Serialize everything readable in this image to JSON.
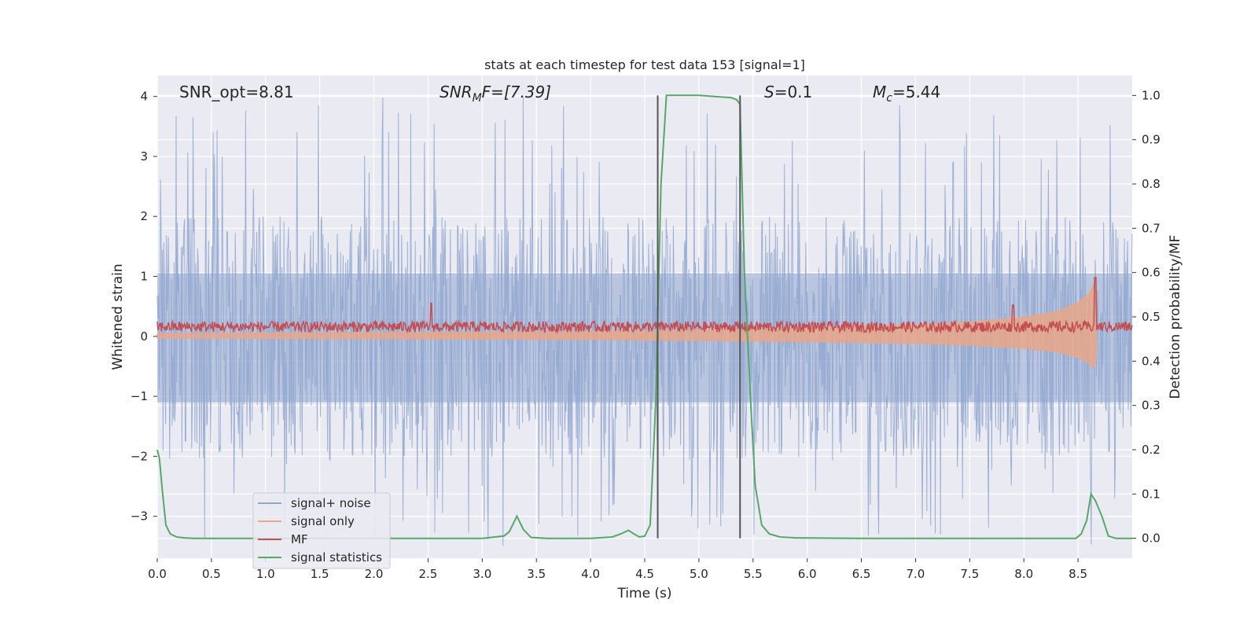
{
  "chart_data": {
    "type": "line",
    "title": "stats at each timestep for test data 153 [signal=1]",
    "xlabel": "Time (s)",
    "ylabel_left": "Whitened strain",
    "ylabel_right": "Detection probability/MF",
    "xlim": [
      0,
      9.0
    ],
    "ylim_left": [
      -3.7,
      4.35
    ],
    "ylim_right": [
      -0.045,
      1.045
    ],
    "x_ticks": [
      "0.0",
      "0.5",
      "1.0",
      "1.5",
      "2.0",
      "2.5",
      "3.0",
      "3.5",
      "4.0",
      "4.5",
      "5.0",
      "5.5",
      "6.0",
      "6.5",
      "7.0",
      "7.5",
      "8.0",
      "8.5"
    ],
    "y_ticks_left": [
      "4",
      "3",
      "2",
      "1",
      "0",
      "−1",
      "−2",
      "−3"
    ],
    "y_ticks_right": [
      "1.0",
      "0.9",
      "0.8",
      "0.7",
      "0.6",
      "0.5",
      "0.4",
      "0.3",
      "0.2",
      "0.1",
      "0.0"
    ],
    "grid": true,
    "legend_position": "lower-left",
    "legend": [
      {
        "label": "signal+ noise",
        "color": "#8fa6cf"
      },
      {
        "label": "signal only",
        "color": "#e8a68a"
      },
      {
        "label": "MF",
        "color": "#c44e52"
      },
      {
        "label": "signal statistics",
        "color": "#55a868"
      }
    ],
    "annotations": {
      "snr_opt": "SNR_opt=8.81",
      "snr_mf_main": "SNR",
      "snr_mf_sub": "M",
      "snr_mf_rest": "F=[7.39]",
      "s_main": "S",
      "s_rest": "=0.1",
      "mc_main": "M",
      "mc_sub": "c",
      "mc_rest": "=5.44"
    },
    "vertical_lines_x": [
      4.62,
      5.38
    ],
    "series": [
      {
        "name": "signal statistics",
        "axis": "right",
        "color": "#55a868",
        "x": [
          0.0,
          0.02,
          0.05,
          0.08,
          0.12,
          0.18,
          0.25,
          0.35,
          0.5,
          1.0,
          2.0,
          3.0,
          3.2,
          3.25,
          3.32,
          3.38,
          3.45,
          3.6,
          4.0,
          4.2,
          4.28,
          4.35,
          4.4,
          4.45,
          4.5,
          4.55,
          4.6,
          4.65,
          4.7,
          5.0,
          5.3,
          5.35,
          5.38,
          5.42,
          5.48,
          5.52,
          5.58,
          5.65,
          5.75,
          5.9,
          6.5,
          7.0,
          8.0,
          8.48,
          8.53,
          8.58,
          8.62,
          8.66,
          8.72,
          8.78,
          8.85,
          9.0
        ],
        "y": [
          0.2,
          0.18,
          0.1,
          0.03,
          0.01,
          0.003,
          0.001,
          0.0,
          0.0,
          0.0,
          0.0,
          0.0,
          0.005,
          0.015,
          0.05,
          0.02,
          0.002,
          0.0,
          0.0,
          0.003,
          0.01,
          0.018,
          0.01,
          0.003,
          0.005,
          0.03,
          0.3,
          0.8,
          1.0,
          1.0,
          0.995,
          0.99,
          0.98,
          0.6,
          0.3,
          0.12,
          0.03,
          0.01,
          0.003,
          0.001,
          0.0,
          0.0,
          0.0,
          0.0,
          0.01,
          0.04,
          0.1,
          0.085,
          0.05,
          0.005,
          0.0,
          0.0
        ]
      },
      {
        "name": "signal only",
        "axis": "left",
        "color": "#e8a68a",
        "description_x": "chirp envelope",
        "envelope_x": [
          0.0,
          1.0,
          2.0,
          3.0,
          4.0,
          5.0,
          6.0,
          7.0,
          7.5,
          8.0,
          8.3,
          8.5,
          8.6,
          8.65,
          8.67
        ],
        "envelope_amp": [
          0.03,
          0.035,
          0.04,
          0.045,
          0.055,
          0.07,
          0.09,
          0.12,
          0.15,
          0.2,
          0.26,
          0.35,
          0.45,
          0.55,
          0.35
        ]
      },
      {
        "name": "MF",
        "axis": "left",
        "color": "#c44e52",
        "baseline": 0.16,
        "spread": 0.09,
        "peaks": [
          {
            "x": 8.66,
            "y": 0.98
          },
          {
            "x": 2.53,
            "y": 0.55
          },
          {
            "x": 7.9,
            "y": 0.52
          }
        ]
      },
      {
        "name": "signal+ noise",
        "axis": "left",
        "color": "#8fa6cf",
        "band": [
          -1.1,
          1.05
        ],
        "extremes": [
          -3.5,
          4.0
        ]
      }
    ]
  }
}
